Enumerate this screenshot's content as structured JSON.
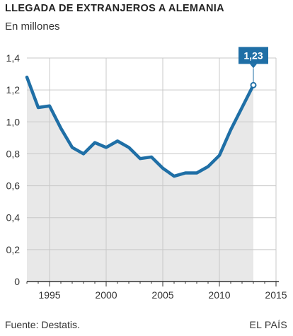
{
  "header": {
    "title": "LLEGADA DE EXTRANJEROS A ALEMANIA",
    "subtitle": "En millones"
  },
  "footer": {
    "source": "Fuente: Destatis.",
    "credit": "EL PAÍS"
  },
  "colors": {
    "line": "#1f6fa6",
    "area": "#e8e8e8",
    "grid": "#c8c8c8",
    "axis": "#333333",
    "callout_bg": "#1f6fa6",
    "callout_text": "#ffffff"
  },
  "chart_data": {
    "type": "area",
    "title": "LLEGADA DE EXTRANJEROS A ALEMANIA",
    "subtitle": "En millones",
    "xlabel": "",
    "ylabel": "",
    "x": [
      1993,
      1994,
      1995,
      1996,
      1997,
      1998,
      1999,
      2000,
      2001,
      2002,
      2003,
      2004,
      2005,
      2006,
      2007,
      2008,
      2009,
      2010,
      2011,
      2012,
      2013
    ],
    "series": [
      {
        "values": [
          1.28,
          1.09,
          1.1,
          0.96,
          0.84,
          0.8,
          0.87,
          0.84,
          0.88,
          0.84,
          0.77,
          0.78,
          0.71,
          0.66,
          0.68,
          0.68,
          0.72,
          0.79,
          0.95,
          1.09,
          1.23
        ]
      }
    ],
    "xlim": [
      1993,
      2015
    ],
    "ylim": [
      0,
      1.4
    ],
    "x_ticks": [
      1995,
      2000,
      2005,
      2010,
      2015
    ],
    "x_tick_labels": [
      "1995",
      "2000",
      "2005",
      "2010",
      "2015"
    ],
    "y_ticks": [
      0,
      0.2,
      0.4,
      0.6,
      0.8,
      1.0,
      1.2,
      1.4
    ],
    "y_tick_labels": [
      "0",
      "0,2",
      "0,4",
      "0,6",
      "0,8",
      "1,0",
      "1,2",
      "1,4"
    ],
    "grid": true,
    "legend": "none",
    "annotations": [
      {
        "x": 2013,
        "y": 1.23,
        "text": "1,23"
      }
    ]
  }
}
